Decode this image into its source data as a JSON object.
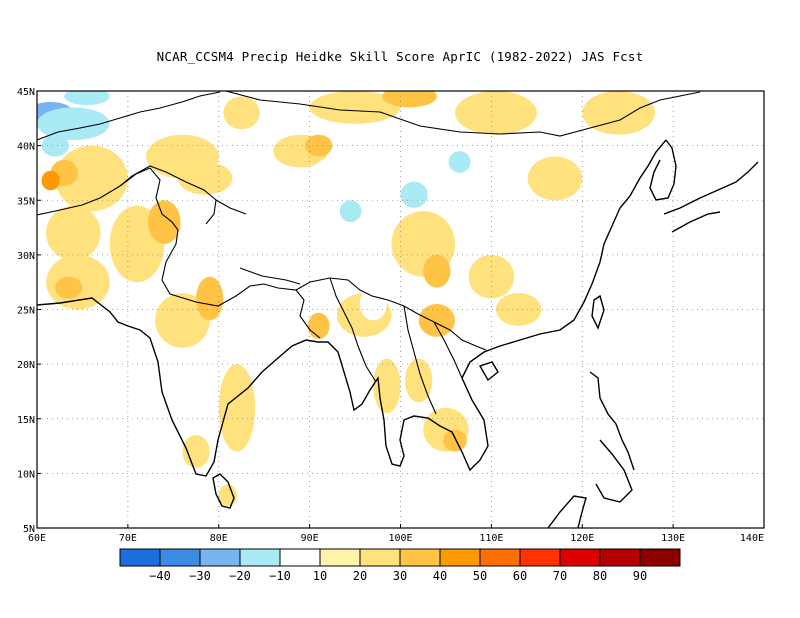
{
  "title": "NCAR_CCSM4 Precip Heidke Skill Score AprIC (1982-2022) JAS Fcst",
  "chart_data": {
    "type": "heatmap",
    "title": "NCAR_CCSM4 Precip Heidke Skill Score AprIC (1982-2022) JAS Fcst",
    "lon_range": [
      60,
      140
    ],
    "lat_range": [
      5,
      45
    ],
    "x_ticks": [
      "60E",
      "70E",
      "80E",
      "90E",
      "100E",
      "110E",
      "120E",
      "130E",
      "140E"
    ],
    "y_ticks": [
      "5N",
      "10N",
      "15N",
      "20N",
      "25N",
      "30N",
      "35N",
      "40N",
      "45N"
    ],
    "grid": true,
    "colorbar": {
      "levels": [
        "-40",
        "-30",
        "-20",
        "-10",
        "10",
        "20",
        "30",
        "40",
        "50",
        "60",
        "70",
        "80",
        "90"
      ],
      "colors": [
        "#1e6ee0",
        "#3c8ce6",
        "#78b4f0",
        "#aaeaf5",
        "#ffffff",
        "#fff5aa",
        "#ffe17d",
        "#ffc346",
        "#ff9b00",
        "#ff6e00",
        "#ff3200",
        "#dc0000",
        "#b40000",
        "#8c0000"
      ]
    },
    "regions": [
      {
        "lon": 61.5,
        "lat": 43.0,
        "rx": 2.5,
        "ry": 1.0,
        "value": -30
      },
      {
        "lon": 64.0,
        "lat": 42.0,
        "rx": 4.0,
        "ry": 1.5,
        "value": -20
      },
      {
        "lon": 62.0,
        "lat": 40.0,
        "rx": 1.5,
        "ry": 1.0,
        "value": -20
      },
      {
        "lon": 65.5,
        "lat": 44.5,
        "rx": 2.5,
        "ry": 0.8,
        "value": -15
      },
      {
        "lon": 75.0,
        "lat": 44.0,
        "rx": 2.5,
        "ry": 1.0,
        "value": -10
      },
      {
        "lon": 66.0,
        "lat": 37.0,
        "rx": 4.0,
        "ry": 3.0,
        "value": 20
      },
      {
        "lon": 63.0,
        "lat": 37.5,
        "rx": 1.5,
        "ry": 1.2,
        "value": 30
      },
      {
        "lon": 61.5,
        "lat": 36.8,
        "rx": 1.0,
        "ry": 0.9,
        "value": 40
      },
      {
        "lon": 64.0,
        "lat": 32.0,
        "rx": 3.0,
        "ry": 2.5,
        "value": 20
      },
      {
        "lon": 64.5,
        "lat": 27.5,
        "rx": 3.5,
        "ry": 2.5,
        "value": 20
      },
      {
        "lon": 63.5,
        "lat": 27.0,
        "rx": 1.5,
        "ry": 1.0,
        "value": 30
      },
      {
        "lon": 71.0,
        "lat": 31.0,
        "rx": 3.0,
        "ry": 3.5,
        "value": 20
      },
      {
        "lon": 74.0,
        "lat": 33.0,
        "rx": 1.8,
        "ry": 2.0,
        "value": 30
      },
      {
        "lon": 76.0,
        "lat": 24.0,
        "rx": 3.0,
        "ry": 2.5,
        "value": 20
      },
      {
        "lon": 79.0,
        "lat": 26.0,
        "rx": 1.5,
        "ry": 2.0,
        "value": 30
      },
      {
        "lon": 82.0,
        "lat": 16.0,
        "rx": 2.0,
        "ry": 4.0,
        "value": 20
      },
      {
        "lon": 77.5,
        "lat": 12.0,
        "rx": 1.5,
        "ry": 1.5,
        "value": 20
      },
      {
        "lon": 81.0,
        "lat": 8.0,
        "rx": 1.0,
        "ry": 1.0,
        "value": 20
      },
      {
        "lon": 76.0,
        "lat": 39.0,
        "rx": 4.0,
        "ry": 2.0,
        "value": 20
      },
      {
        "lon": 78.5,
        "lat": 37.0,
        "rx": 3.0,
        "ry": 1.5,
        "value": 20
      },
      {
        "lon": 82.5,
        "lat": 43.0,
        "rx": 2.0,
        "ry": 1.5,
        "value": 20
      },
      {
        "lon": 89.0,
        "lat": 39.5,
        "rx": 3.0,
        "ry": 1.5,
        "value": 20
      },
      {
        "lon": 91.0,
        "lat": 40.0,
        "rx": 1.5,
        "ry": 1.0,
        "value": 30
      },
      {
        "lon": 95.0,
        "lat": 43.5,
        "rx": 5.0,
        "ry": 1.5,
        "value": 20
      },
      {
        "lon": 101.0,
        "lat": 44.5,
        "rx": 3.0,
        "ry": 1.0,
        "value": 30
      },
      {
        "lon": 110.5,
        "lat": 43.0,
        "rx": 4.5,
        "ry": 2.0,
        "value": 20
      },
      {
        "lon": 124.0,
        "lat": 43.0,
        "rx": 4.0,
        "ry": 2.0,
        "value": 20
      },
      {
        "lon": 117.0,
        "lat": 37.0,
        "rx": 3.0,
        "ry": 2.0,
        "value": 20
      },
      {
        "lon": 102.5,
        "lat": 31.0,
        "rx": 3.5,
        "ry": 3.0,
        "value": 20
      },
      {
        "lon": 104.0,
        "lat": 28.5,
        "rx": 1.5,
        "ry": 1.5,
        "value": 30
      },
      {
        "lon": 110.0,
        "lat": 28.0,
        "rx": 2.5,
        "ry": 2.0,
        "value": 20
      },
      {
        "lon": 113.0,
        "lat": 25.0,
        "rx": 2.5,
        "ry": 1.5,
        "value": 20
      },
      {
        "lon": 104.0,
        "lat": 24.0,
        "rx": 2.0,
        "ry": 1.5,
        "value": 30
      },
      {
        "lon": 96.0,
        "lat": 24.5,
        "rx": 3.0,
        "ry": 2.0,
        "value": 20
      },
      {
        "lon": 91.0,
        "lat": 23.5,
        "rx": 1.2,
        "ry": 1.2,
        "value": 30
      },
      {
        "lon": 98.5,
        "lat": 18.0,
        "rx": 1.5,
        "ry": 2.5,
        "value": 20
      },
      {
        "lon": 102.0,
        "lat": 18.5,
        "rx": 1.5,
        "ry": 2.0,
        "value": 20
      },
      {
        "lon": 105.0,
        "lat": 14.0,
        "rx": 2.5,
        "ry": 2.0,
        "value": 20
      },
      {
        "lon": 106.0,
        "lat": 13.0,
        "rx": 1.3,
        "ry": 1.0,
        "value": 30
      },
      {
        "lon": 93.0,
        "lat": 37.0,
        "rx": 3.0,
        "ry": 2.0,
        "value": -10
      },
      {
        "lon": 96.0,
        "lat": 34.5,
        "rx": 3.0,
        "ry": 2.5,
        "value": -10
      },
      {
        "lon": 94.5,
        "lat": 34.0,
        "rx": 1.2,
        "ry": 1.0,
        "value": -20
      },
      {
        "lon": 101.5,
        "lat": 35.5,
        "rx": 1.5,
        "ry": 1.2,
        "value": -20
      },
      {
        "lon": 107.0,
        "lat": 38.0,
        "rx": 3.0,
        "ry": 2.0,
        "value": -10
      },
      {
        "lon": 106.5,
        "lat": 38.5,
        "rx": 1.2,
        "ry": 1.0,
        "value": -20
      },
      {
        "lon": 128.0,
        "lat": 37.5,
        "rx": 1.5,
        "ry": 2.0,
        "value": -10
      },
      {
        "lon": 97.0,
        "lat": 25.5,
        "rx": 1.5,
        "ry": 1.5,
        "value": -10
      },
      {
        "lon": 95.0,
        "lat": 29.5,
        "rx": 2.0,
        "ry": 1.0,
        "value": -10
      },
      {
        "lon": 94.0,
        "lat": 16.5,
        "rx": 1.0,
        "ry": 1.0,
        "value": -10
      }
    ]
  }
}
